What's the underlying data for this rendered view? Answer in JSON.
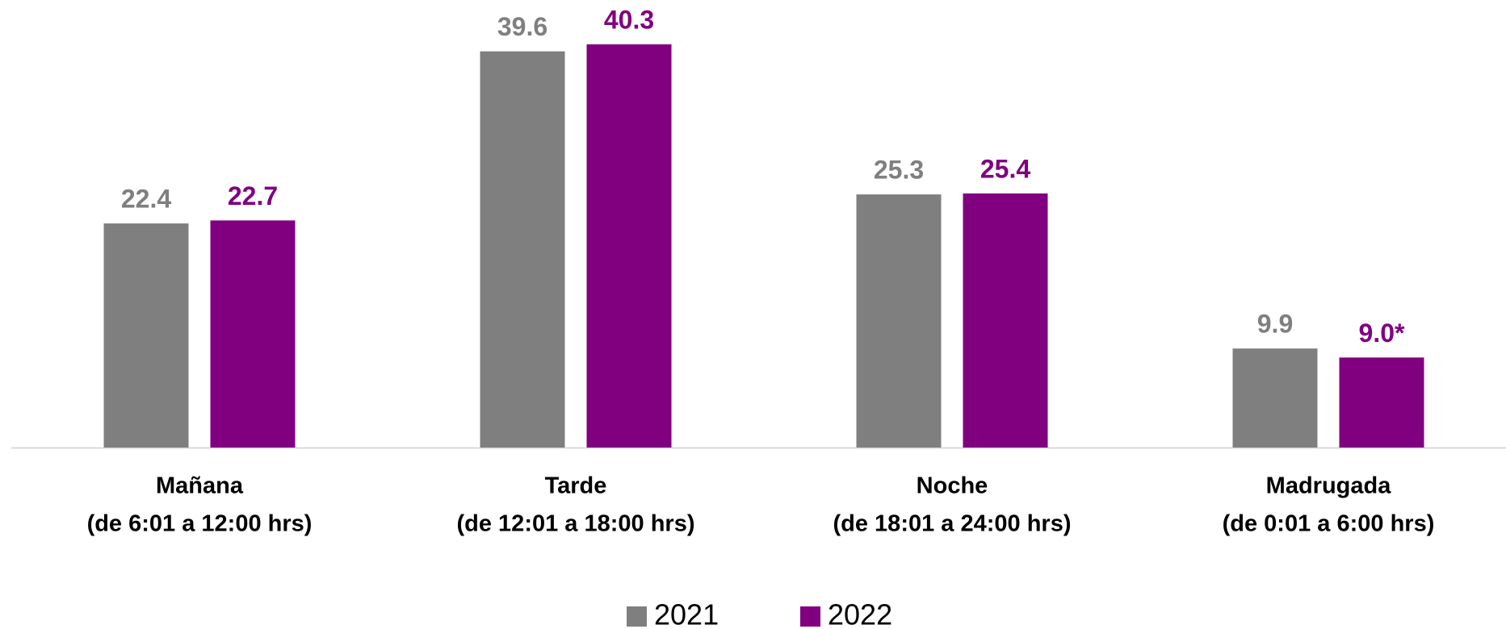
{
  "chart_data": {
    "type": "bar",
    "categories": [
      "Mañana",
      "Tarde",
      "Noche",
      "Madrugada"
    ],
    "category_ranges": [
      "(de 6:01 a 12:00 hrs)",
      "(de 12:01 a 18:00 hrs)",
      "(de 18:01 a 24:00 hrs)",
      "(de 0:01 a 6:00 hrs)"
    ],
    "series": [
      {
        "name": "2021",
        "color": "#7f7f7f",
        "values": [
          22.4,
          39.6,
          25.3,
          9.9
        ]
      },
      {
        "name": "2022",
        "color": "#800080",
        "values": [
          22.7,
          40.3,
          25.4,
          9.0
        ],
        "value_labels": [
          "22.7",
          "40.3",
          "25.4",
          "9.0*"
        ]
      }
    ],
    "legend": "bottom"
  }
}
